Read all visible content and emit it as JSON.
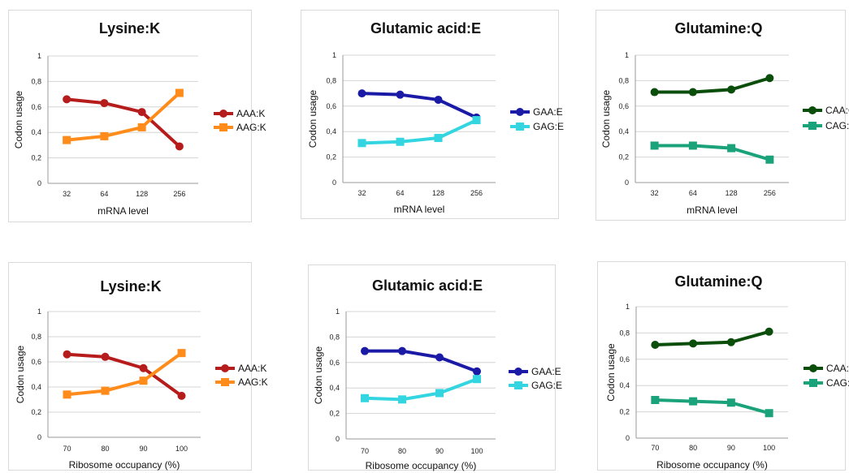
{
  "chart_data": [
    {
      "type": "line",
      "title": "Lysine:K",
      "xlabel": "mRNA level",
      "ylabel": "Codon usage",
      "categories": [
        "32",
        "64",
        "128",
        "256"
      ],
      "ylim": [
        0,
        1
      ],
      "yticks": [
        "0",
        "0,2",
        "0,4",
        "0,6",
        "0,8",
        "1"
      ],
      "grid": true,
      "legend": "right",
      "series": [
        {
          "name": "AAA:K",
          "values": [
            0.66,
            0.63,
            0.56,
            0.29
          ],
          "color": "#b71c1c",
          "marker": "circle"
        },
        {
          "name": "AAG:K",
          "values": [
            0.34,
            0.37,
            0.44,
            0.71
          ],
          "color": "#ff8c1a",
          "marker": "square"
        }
      ]
    },
    {
      "type": "line",
      "title": "Glutamic acid:E",
      "xlabel": "mRNA level",
      "ylabel": "Codon usage",
      "categories": [
        "32",
        "64",
        "128",
        "256"
      ],
      "ylim": [
        0,
        1
      ],
      "yticks": [
        "0",
        "0,2",
        "0,4",
        "0,6",
        "0,8",
        "1"
      ],
      "grid": true,
      "legend": "right",
      "series": [
        {
          "name": "GAA:E",
          "values": [
            0.7,
            0.69,
            0.65,
            0.51
          ],
          "color": "#1a1aa6",
          "marker": "circle"
        },
        {
          "name": "GAG:E",
          "values": [
            0.31,
            0.32,
            0.35,
            0.49
          ],
          "color": "#33d6e0",
          "marker": "square"
        }
      ]
    },
    {
      "type": "line",
      "title": "Glutamine:Q",
      "xlabel": "mRNA level",
      "ylabel": "Codon usage",
      "categories": [
        "32",
        "64",
        "128",
        "256"
      ],
      "ylim": [
        0,
        1
      ],
      "yticks": [
        "0",
        "0,2",
        "0,4",
        "0,6",
        "0,8",
        "1"
      ],
      "grid": true,
      "legend": "right",
      "series": [
        {
          "name": "CAA:Q",
          "values": [
            0.71,
            0.71,
            0.73,
            0.82
          ],
          "color": "#0b4d0b",
          "marker": "circle"
        },
        {
          "name": "CAG:Q",
          "values": [
            0.29,
            0.29,
            0.27,
            0.18
          ],
          "color": "#1aa37a",
          "marker": "square"
        }
      ]
    },
    {
      "type": "line",
      "title": "Lysine:K",
      "xlabel": "Ribosome occupancy (%)",
      "ylabel": "Codon usage",
      "categories": [
        "70",
        "80",
        "90",
        "100"
      ],
      "ylim": [
        0,
        1
      ],
      "yticks": [
        "0",
        "0,2",
        "0,4",
        "0,6",
        "0,8",
        "1"
      ],
      "grid": true,
      "legend": "right",
      "series": [
        {
          "name": "AAA:K",
          "values": [
            0.66,
            0.64,
            0.55,
            0.33
          ],
          "color": "#b71c1c",
          "marker": "circle"
        },
        {
          "name": "AAG:K",
          "values": [
            0.34,
            0.37,
            0.45,
            0.67
          ],
          "color": "#ff8c1a",
          "marker": "square"
        }
      ]
    },
    {
      "type": "line",
      "title": "Glutamic acid:E",
      "xlabel": "Ribosome occupancy (%)",
      "ylabel": "Codon usage",
      "categories": [
        "70",
        "80",
        "90",
        "100"
      ],
      "ylim": [
        0,
        1
      ],
      "yticks": [
        "0",
        "0,2",
        "0,4",
        "0,6",
        "0,8",
        "1"
      ],
      "grid": true,
      "legend": "right",
      "series": [
        {
          "name": "GAA:E",
          "values": [
            0.69,
            0.69,
            0.64,
            0.53
          ],
          "color": "#1a1aa6",
          "marker": "circle"
        },
        {
          "name": "GAG:E",
          "values": [
            0.32,
            0.31,
            0.36,
            0.47
          ],
          "color": "#33d6e0",
          "marker": "square"
        }
      ]
    },
    {
      "type": "line",
      "title": "Glutamine:Q",
      "xlabel": "Ribosome occupancy (%)",
      "ylabel": "Codon usage",
      "categories": [
        "70",
        "80",
        "90",
        "100"
      ],
      "ylim": [
        0,
        1
      ],
      "yticks": [
        "0",
        "0,2",
        "0,4",
        "0,6",
        "0,8",
        "1"
      ],
      "grid": true,
      "legend": "right",
      "series": [
        {
          "name": "CAA:Q",
          "values": [
            0.71,
            0.72,
            0.73,
            0.81
          ],
          "color": "#0b4d0b",
          "marker": "circle"
        },
        {
          "name": "CAG:Q",
          "values": [
            0.29,
            0.28,
            0.27,
            0.19
          ],
          "color": "#1aa37a",
          "marker": "square"
        }
      ]
    }
  ]
}
